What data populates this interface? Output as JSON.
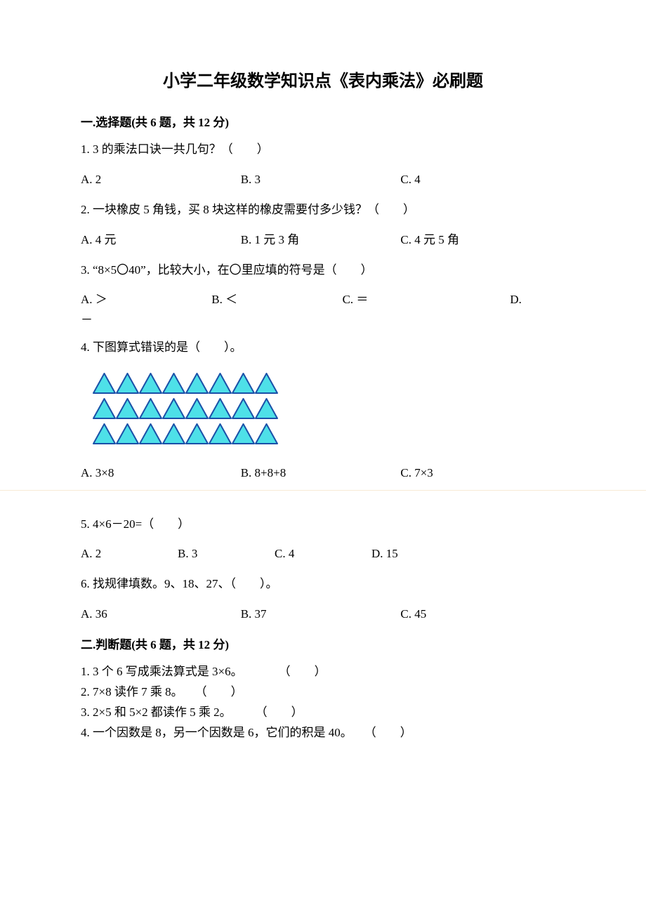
{
  "doc": {
    "title_fontsize": 24,
    "body_fontsize": 17,
    "text_color": "#000000",
    "bg_color": "#ffffff",
    "title": "小学二年级数学知识点《表内乘法》必刷题"
  },
  "section1": {
    "header": "一.选择题(共 6 题，共 12 分)",
    "q1": {
      "text": "1. 3 的乘法口诀一共几句？（　　）",
      "a": "A. 2",
      "b": "B. 3",
      "c": "C. 4"
    },
    "q2": {
      "text": "2. 一块橡皮 5 角钱，买 8 块这样的橡皮需要付多少钱？（　　）",
      "a": "A. 4 元",
      "b": "B. 1 元 3 角",
      "c": "C. 4 元 5 角"
    },
    "q3": {
      "text": "3. “8×5〇40”，比较大小，在〇里应填的符号是（　　）",
      "a": "A. ＞",
      "b": "B. ＜",
      "c": "C. ＝",
      "d": "D.",
      "dash": "－"
    },
    "q4": {
      "text": "4. 下图算式错误的是（　　）。",
      "a": "A. 3×8",
      "b": "B. 8+8+8",
      "c": "C. 7×3",
      "triangles": {
        "rows": 3,
        "cols": 8,
        "fill": "#4ee0e8",
        "stroke": "#1a50a8",
        "stroke_width": 2,
        "bg": "#ffffff",
        "tri_w": 31,
        "tri_h": 28,
        "gap": 2
      }
    },
    "q5": {
      "text": "5. 4×6－20=（　　）",
      "a": "A. 2",
      "b": "B. 3",
      "c": "C. 4",
      "d": "D. 15"
    },
    "q6": {
      "text": "6. 找规律填数。9、18、27、（　　）。",
      "a": "A. 36",
      "b": "B. 37",
      "c": "C. 45"
    }
  },
  "section2": {
    "header": "二.判断题(共 6 题，共 12 分)",
    "j1": "1. 3 个 6 写成乘法算式是 3×6。　　　　（　　）",
    "j2": "2. 7×8 读作 7 乘 8。　　（　　）",
    "j3": "3. 2×5 和 5×2 都读作 5 乘 2。　　　（　　）",
    "j4": "4. 一个因数是 8，另一个因数是 6，它们的积是 40。　　（　　）"
  }
}
